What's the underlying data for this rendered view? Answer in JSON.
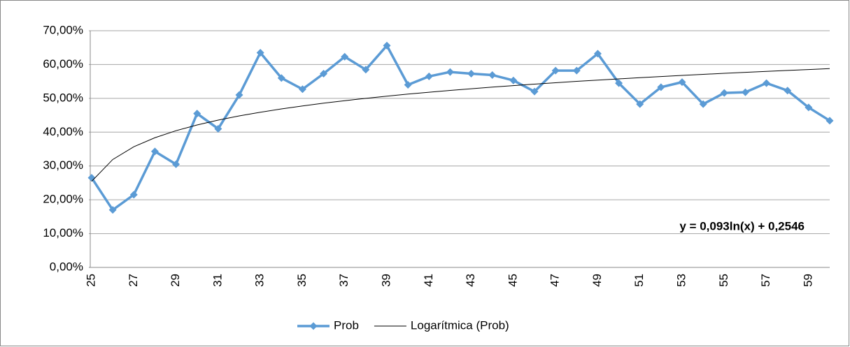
{
  "chart_data": {
    "type": "line",
    "annotation": "y = 0,093ln(x) + 0,2546",
    "categories": [
      25,
      null,
      27,
      null,
      29,
      null,
      31,
      null,
      33,
      null,
      35,
      null,
      37,
      null,
      39,
      null,
      41,
      null,
      43,
      null,
      45,
      null,
      47,
      null,
      49,
      null,
      51,
      null,
      53,
      null,
      55,
      null,
      57,
      null,
      59,
      null
    ],
    "series": [
      {
        "name": "Prob",
        "color": "#5b9bd5",
        "marker": "diamond",
        "values": [
          26.5,
          17,
          21.5,
          34.3,
          30.5,
          45.5,
          41,
          51,
          63.5,
          56,
          52.7,
          57.3,
          62.3,
          58.5,
          65.6,
          54,
          56.5,
          57.8,
          57.3,
          56.9,
          55.3,
          52,
          58.2,
          58.2,
          63.2,
          54.5,
          48.3,
          53.3,
          54.8,
          48.3,
          51.6,
          51.8,
          54.5,
          52.3,
          47.3,
          43.4
        ]
      },
      {
        "name": "Logarítmica (Prob)",
        "color": "#000000",
        "values": [
          25.46,
          31.91,
          35.68,
          38.35,
          40.43,
          42.12,
          43.56,
          44.8,
          45.89,
          46.87,
          47.76,
          48.57,
          49.31,
          50.0,
          50.65,
          51.25,
          51.81,
          52.34,
          52.84,
          53.32,
          53.77,
          54.21,
          54.62,
          55.02,
          55.4,
          55.76,
          56.11,
          56.45,
          56.78,
          57.09,
          57.4,
          57.69,
          57.98,
          58.25,
          58.52,
          58.79
        ]
      }
    ],
    "ylim": [
      0,
      70
    ],
    "yticks": [
      {
        "value": 0,
        "label": "0,00%"
      },
      {
        "value": 10,
        "label": "10,00%"
      },
      {
        "value": 20,
        "label": "20,00%"
      },
      {
        "value": 30,
        "label": "30,00%"
      },
      {
        "value": 40,
        "label": "40,00%"
      },
      {
        "value": 50,
        "label": "50,00%"
      },
      {
        "value": 60,
        "label": "60,00%"
      },
      {
        "value": 70,
        "label": "70,00%"
      }
    ],
    "grid": true,
    "legend": "bottom"
  }
}
